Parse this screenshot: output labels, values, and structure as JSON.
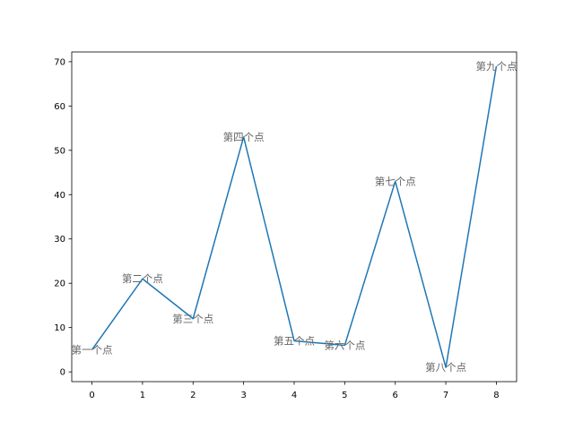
{
  "chart_data": {
    "type": "line",
    "x": [
      0,
      1,
      2,
      3,
      4,
      5,
      6,
      7,
      8
    ],
    "series": [
      {
        "values": [
          5,
          21,
          12,
          53,
          7,
          6,
          43,
          1,
          69
        ],
        "color": "#1f77b4"
      }
    ],
    "point_labels": [
      "第一个点",
      "第二个点",
      "第三个点",
      "第四个点",
      "第五个点",
      "第六个点",
      "第七个点",
      "第八个点",
      "第九个点"
    ],
    "xticks": [
      "0",
      "1",
      "2",
      "3",
      "4",
      "5",
      "6",
      "7",
      "8"
    ],
    "yticks": [
      "0",
      "10",
      "20",
      "30",
      "40",
      "50",
      "60",
      "70"
    ],
    "xlim": [
      -0.4,
      8.4
    ],
    "ylim": [
      -2.2,
      72.2
    ],
    "grid": false,
    "title": "",
    "xlabel": "",
    "ylabel": "",
    "label_color": "#666666"
  }
}
